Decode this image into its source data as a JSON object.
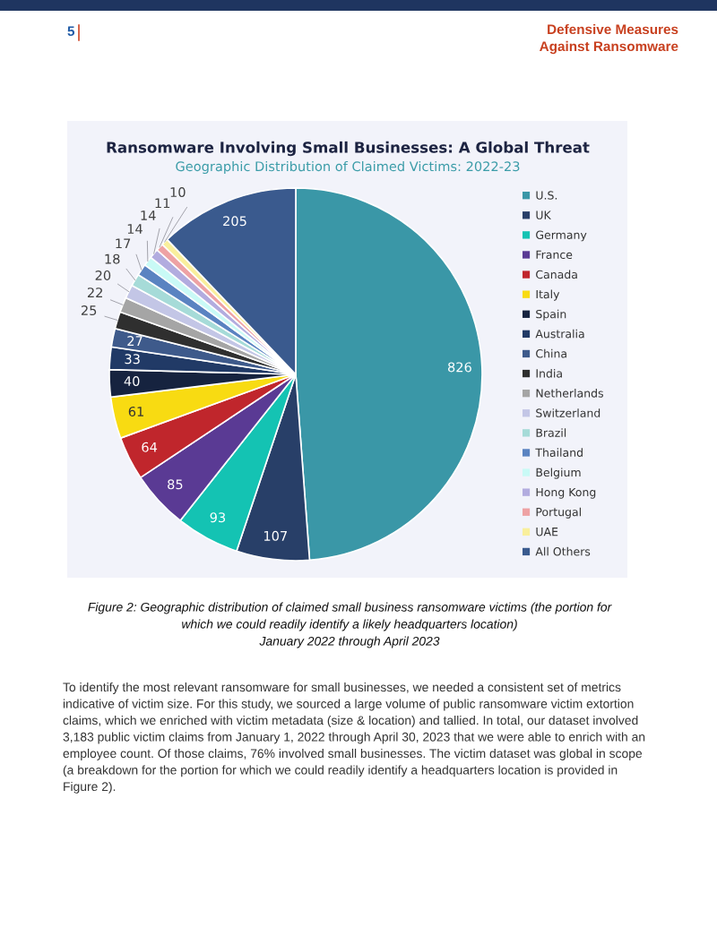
{
  "chart_data": {
    "type": "pie",
    "title": "Ransomware Involving Small Businesses: A Global Threat",
    "subtitle": "Geographic Distribution of Claimed Victims: 2022-23",
    "categories": [
      "U.S.",
      "UK",
      "Germany",
      "France",
      "Canada",
      "Italy",
      "Spain",
      "Australia",
      "China",
      "India",
      "Netherlands",
      "Switzerland",
      "Brazil",
      "Thailand",
      "Belgium",
      "Hong Kong",
      "Portugal",
      "UAE",
      "All Others"
    ],
    "values": [
      826,
      107,
      93,
      85,
      64,
      61,
      40,
      33,
      27,
      25,
      22,
      20,
      18,
      17,
      14,
      14,
      11,
      10,
      205
    ],
    "colors": [
      "#3a97a7",
      "#283f68",
      "#14c3b3",
      "#5a3a94",
      "#c0262c",
      "#f8db12",
      "#16233f",
      "#213a66",
      "#3e5a8b",
      "#2f2f2f",
      "#a5a5a5",
      "#c3c6e6",
      "#a6dbd8",
      "#5a83c1",
      "#c9faf6",
      "#b2acdf",
      "#eea2a4",
      "#f9ef9c",
      "#3a5a8e"
    ],
    "data_labels": true,
    "legend": "right",
    "annotations": [
      "5",
      "Defensive Measures",
      "Against Ransomware",
      "Figure 2: Geographic distribution of claimed small business ransomware victims (the portion for",
      "which we could readily identify a likely headquarters location)",
      "January 2022 through April 2023",
      "To identify the most relevant ransomware for small businesses, we needed a consistent set of metrics indicative of victim size. For this study, we sourced a large volume of public ransomware victim extortion claims, which we enriched with victim metadata (size & location) and tallied. In total, our dataset involved 3,183 public victim claims from January 1, 2022 through April 30, 2023 that we were able to enrich with an employee count. Of those claims, 76% involved small businesses. The victim dataset was global in scope (a breakdown for the portion for which we could readily identify a headquarters location is provided in Figure 2)."
    ]
  }
}
